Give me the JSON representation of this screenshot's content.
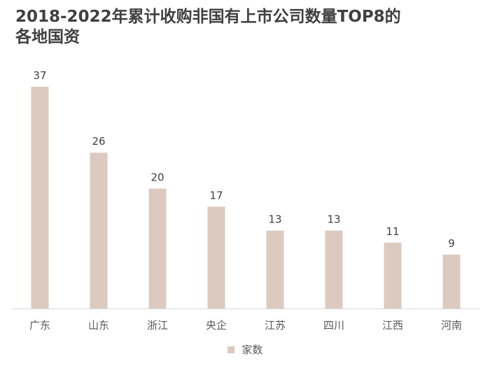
{
  "chart_data": {
    "type": "bar",
    "title": "2018-2022年累计收购非国有上市公司数量TOP8的各地国资",
    "categories": [
      "广东",
      "山东",
      "浙江",
      "央企",
      "江苏",
      "四川",
      "江西",
      "河南"
    ],
    "series": [
      {
        "name": "家数",
        "values": [
          37,
          26,
          20,
          17,
          13,
          13,
          11,
          9
        ],
        "color": "#dccac0"
      }
    ],
    "ylim": [
      0,
      37
    ],
    "grid": false,
    "legend_position": "bottom"
  }
}
